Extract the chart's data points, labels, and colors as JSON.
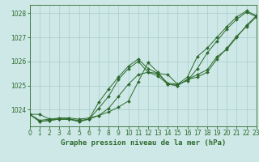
{
  "x": [
    0,
    1,
    2,
    3,
    4,
    5,
    6,
    7,
    8,
    9,
    10,
    11,
    12,
    13,
    14,
    15,
    16,
    17,
    18,
    19,
    20,
    21,
    22,
    23
  ],
  "line1": [
    1023.8,
    1023.8,
    1023.6,
    1023.65,
    1023.65,
    1023.6,
    1023.65,
    1023.75,
    1023.9,
    1024.1,
    1024.35,
    1025.15,
    1025.95,
    1025.55,
    1025.05,
    1025.0,
    1025.25,
    1025.35,
    1025.55,
    1026.1,
    1026.55,
    1027.05,
    1027.45,
    1027.85
  ],
  "line2": [
    1023.8,
    1023.55,
    1023.6,
    1023.6,
    1023.6,
    1023.55,
    1023.6,
    1023.75,
    1024.05,
    1024.55,
    1025.05,
    1025.45,
    1025.55,
    1025.4,
    1025.05,
    1025.0,
    1025.25,
    1025.45,
    1025.65,
    1026.2,
    1026.5,
    1027.0,
    1027.5,
    1027.9
  ],
  "line3": [
    1023.8,
    1023.5,
    1023.55,
    1023.6,
    1023.6,
    1023.5,
    1023.6,
    1024.05,
    1024.55,
    1025.25,
    1025.7,
    1026.0,
    1025.55,
    1025.5,
    1025.45,
    1025.05,
    1025.2,
    1025.7,
    1026.35,
    1026.85,
    1027.35,
    1027.75,
    1028.05,
    1027.85
  ],
  "line4": [
    1023.8,
    1023.5,
    1023.55,
    1023.6,
    1023.6,
    1023.5,
    1023.6,
    1024.3,
    1024.85,
    1025.35,
    1025.8,
    1026.1,
    1025.7,
    1025.5,
    1025.1,
    1025.05,
    1025.35,
    1026.2,
    1026.55,
    1027.0,
    1027.45,
    1027.85,
    1028.1,
    1027.9
  ],
  "line_color": "#2d6a2d",
  "bg_color": "#cde8e6",
  "grid_color": "#aacccc",
  "xlabel": "Graphe pression niveau de la mer (hPa)",
  "ylim": [
    1023.3,
    1028.35
  ],
  "xlim": [
    0,
    23
  ],
  "yticks": [
    1024,
    1025,
    1026,
    1027,
    1028
  ],
  "xticks": [
    0,
    1,
    2,
    3,
    4,
    5,
    6,
    7,
    8,
    9,
    10,
    11,
    12,
    13,
    14,
    15,
    16,
    17,
    18,
    19,
    20,
    21,
    22,
    23
  ],
  "xlabel_fontsize": 6.5,
  "tick_fontsize": 5.5
}
